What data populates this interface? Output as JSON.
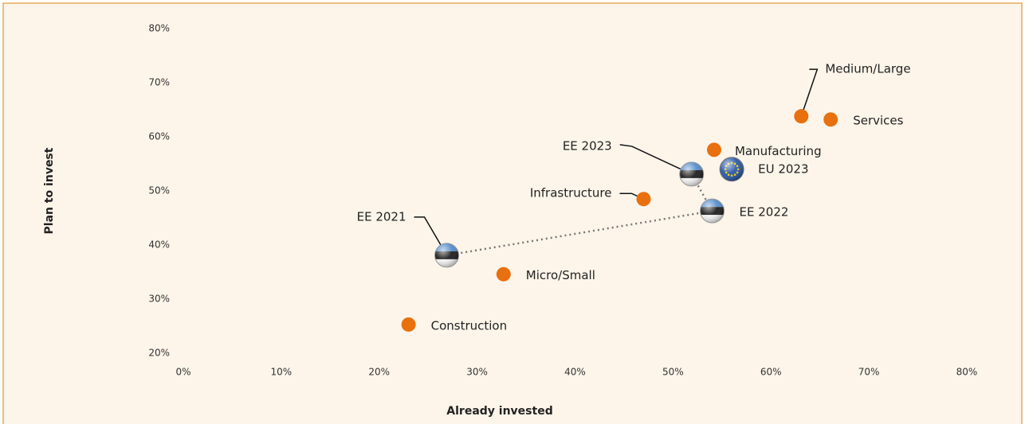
{
  "chart_data": {
    "type": "scatter",
    "xlabel": "Already invested",
    "ylabel": "Plan to invest",
    "xlim": [
      0,
      80
    ],
    "ylim": [
      20,
      80
    ],
    "xticks": [
      {
        "value": 0,
        "label": "0%"
      },
      {
        "value": 10,
        "label": "10%"
      },
      {
        "value": 20,
        "label": "20%"
      },
      {
        "value": 30,
        "label": "30%"
      },
      {
        "value": 40,
        "label": "40%"
      },
      {
        "value": 50,
        "label": "50%"
      },
      {
        "value": 60,
        "label": "60%"
      },
      {
        "value": 70,
        "label": "70%"
      },
      {
        "value": 80,
        "label": "80%"
      }
    ],
    "yticks": [
      {
        "value": 20,
        "label": "20%"
      },
      {
        "value": 30,
        "label": "30%"
      },
      {
        "value": 40,
        "label": "40%"
      },
      {
        "value": 50,
        "label": "50%"
      },
      {
        "value": 60,
        "label": "60%"
      },
      {
        "value": 70,
        "label": "70%"
      },
      {
        "value": 80,
        "label": "80%"
      }
    ],
    "grid": false,
    "series": [
      {
        "color": "#e8700f",
        "marker": "dot",
        "labels": [
          "Medium/Large",
          "Services",
          "Manufacturing",
          "Infrastructure",
          "Micro/Small",
          "Construction"
        ],
        "x": [
          63.1,
          66.1,
          54.2,
          47.0,
          32.7,
          23.0
        ],
        "y": [
          63.8,
          63.2,
          57.6,
          48.5,
          34.6,
          25.3
        ]
      },
      {
        "color": "#2f6fb5",
        "marker": "ee-flag",
        "connected": true,
        "labels": [
          "EE 2021",
          "EE 2022",
          "EE 2023"
        ],
        "x": [
          26.9,
          54.0,
          51.9
        ],
        "y": [
          38.1,
          46.3,
          53.1
        ]
      },
      {
        "color": "#1f4fa0",
        "marker": "eu-flag",
        "labels": [
          "EU 2023"
        ],
        "x": [
          56.0
        ],
        "y": [
          54.0
        ]
      }
    ]
  }
}
